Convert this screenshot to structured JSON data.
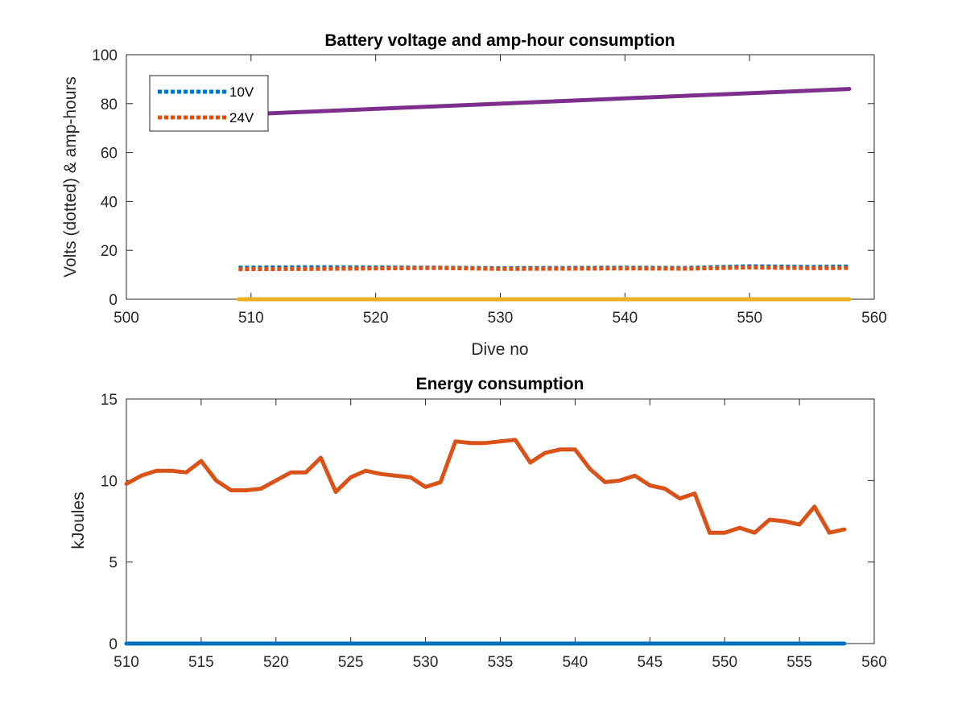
{
  "chart_data": [
    {
      "type": "line",
      "title": "Battery voltage and amp-hour consumption",
      "xlabel": "Dive no",
      "ylabel": "Volts (dotted) & amp-hours",
      "xlim": [
        500,
        560
      ],
      "ylim": [
        0,
        100
      ],
      "xticks": [
        "500",
        "510",
        "520",
        "530",
        "540",
        "550",
        "560"
      ],
      "yticks": [
        "0",
        "20",
        "40",
        "60",
        "80",
        "100"
      ],
      "legend_position": "top-left",
      "series": [
        {
          "name": "10V",
          "style": "dotted",
          "color": "#0072BD",
          "x": [
            509,
            515,
            520,
            525,
            530,
            535,
            540,
            545,
            550,
            555,
            558
          ],
          "y": [
            12.9,
            13.1,
            13.0,
            12.9,
            12.7,
            12.8,
            12.9,
            12.8,
            13.5,
            13.2,
            13.4
          ]
        },
        {
          "name": "24V",
          "style": "dotted",
          "color": "#D95319",
          "x": [
            509,
            515,
            520,
            525,
            530,
            535,
            540,
            545,
            550,
            555,
            558
          ],
          "y": [
            12.3,
            12.4,
            12.6,
            12.8,
            12.4,
            12.5,
            12.6,
            12.5,
            13.0,
            12.7,
            12.8
          ]
        },
        {
          "style": "solid",
          "color": "#7E2F8E",
          "x": [
            509,
            558
          ],
          "y": [
            75.5,
            86.0
          ]
        },
        {
          "style": "solid",
          "color": "#EDB120",
          "x": [
            509,
            558
          ],
          "y": [
            0,
            0
          ]
        }
      ]
    },
    {
      "type": "line",
      "title": "Energy consumption",
      "xlabel": "",
      "ylabel": "kJoules",
      "xlim": [
        510,
        560
      ],
      "ylim": [
        0,
        15
      ],
      "xticks": [
        "510",
        "515",
        "520",
        "525",
        "530",
        "535",
        "540",
        "545",
        "550",
        "555",
        "560"
      ],
      "yticks": [
        "0",
        "5",
        "10",
        "15"
      ],
      "series": [
        {
          "style": "solid",
          "color": "#0072BD",
          "x": [
            510,
            558
          ],
          "y": [
            0,
            0
          ]
        },
        {
          "style": "solid",
          "color": "#D95319",
          "x": [
            510,
            511,
            512,
            513,
            514,
            515,
            516,
            517,
            518,
            519,
            520,
            521,
            522,
            523,
            524,
            525,
            526,
            527,
            528,
            529,
            530,
            531,
            532,
            533,
            534,
            535,
            536,
            537,
            538,
            539,
            540,
            541,
            542,
            543,
            544,
            545,
            546,
            547,
            548,
            549,
            550,
            551,
            552,
            553,
            554,
            555,
            556,
            557,
            558
          ],
          "y": [
            9.8,
            10.3,
            10.6,
            10.6,
            10.5,
            11.2,
            10.0,
            9.4,
            9.4,
            9.5,
            10.0,
            10.5,
            10.5,
            11.4,
            9.3,
            10.2,
            10.6,
            10.4,
            10.3,
            10.2,
            9.6,
            9.9,
            12.4,
            12.3,
            12.3,
            12.4,
            12.5,
            11.1,
            11.7,
            11.9,
            11.9,
            10.7,
            9.9,
            10.0,
            10.3,
            9.7,
            9.5,
            8.9,
            9.2,
            6.8,
            6.8,
            7.1,
            6.8,
            7.6,
            7.5,
            7.3,
            8.4,
            6.8,
            7.0
          ]
        }
      ]
    }
  ]
}
